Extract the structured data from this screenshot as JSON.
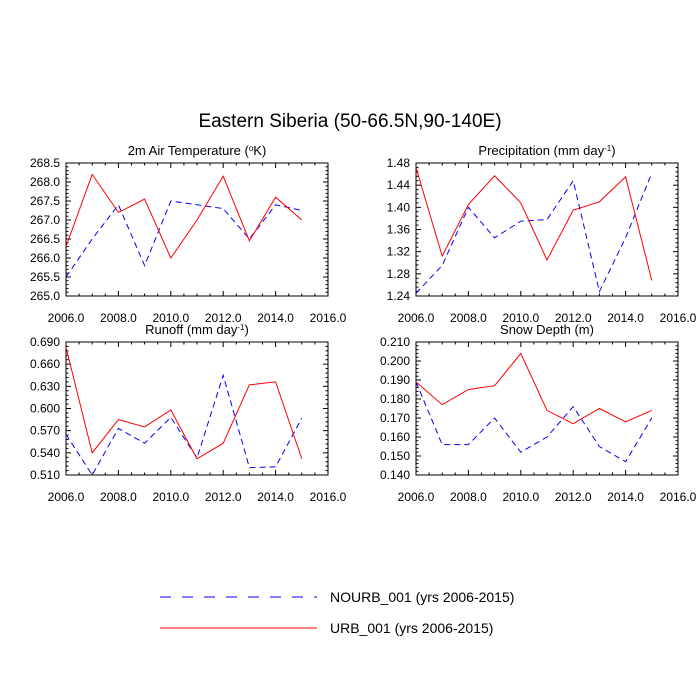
{
  "figure": {
    "title": "Eastern Siberia (50-66.5N,90-140E)"
  },
  "legend": [
    {
      "name": "NOURB_001 (yrs 2006-2015)",
      "color": "#0000ff",
      "dash": "dashed"
    },
    {
      "name": "URB_001 (yrs 2006-2015)",
      "color": "#ff0000",
      "dash": "solid"
    }
  ],
  "chart_data": [
    {
      "type": "line",
      "title": "2m Air Temperature",
      "title_unit": "K",
      "title_sup": "o",
      "title_style": "temp",
      "x": [
        2006,
        2007,
        2008,
        2009,
        2010,
        2011,
        2012,
        2013,
        2014,
        2015
      ],
      "xlim": [
        2006,
        2016
      ],
      "xticks": [
        "2006.0",
        "2008.0",
        "2010.0",
        "2012.0",
        "2014.0",
        "2016.0"
      ],
      "ylim": [
        265.0,
        268.5
      ],
      "yticks": [
        "265.0",
        "265.5",
        "266.0",
        "266.5",
        "267.0",
        "267.5",
        "268.0",
        "268.5"
      ],
      "series": [
        {
          "name": "NOURB_001",
          "color": "#0000ff",
          "dash": "dashed",
          "values": [
            265.5,
            266.5,
            267.4,
            265.8,
            267.5,
            267.4,
            267.3,
            266.5,
            267.4,
            267.25
          ]
        },
        {
          "name": "URB_001",
          "color": "#ff0000",
          "dash": "solid",
          "values": [
            266.3,
            268.2,
            267.2,
            267.55,
            266.0,
            267.0,
            268.15,
            266.45,
            267.6,
            267.0
          ]
        }
      ]
    },
    {
      "type": "line",
      "title": "Precipitation (mm day",
      "title_sup": "-1",
      "title_end": ")",
      "title_style": "sup",
      "x": [
        2006,
        2007,
        2008,
        2009,
        2010,
        2011,
        2012,
        2013,
        2014,
        2015
      ],
      "xlim": [
        2006,
        2016
      ],
      "xticks": [
        "2006.0",
        "2008.0",
        "2010.0",
        "2012.0",
        "2014.0",
        "2016.0"
      ],
      "ylim": [
        1.24,
        1.48
      ],
      "yticks": [
        "1.24",
        "1.28",
        "1.32",
        "1.36",
        "1.40",
        "1.44",
        "1.48"
      ],
      "series": [
        {
          "name": "NOURB_001",
          "color": "#0000ff",
          "dash": "dashed",
          "values": [
            1.245,
            1.295,
            1.4,
            1.345,
            1.375,
            1.378,
            1.448,
            1.248,
            1.345,
            1.462
          ]
        },
        {
          "name": "URB_001",
          "color": "#ff0000",
          "dash": "solid",
          "values": [
            1.472,
            1.312,
            1.405,
            1.457,
            1.408,
            1.305,
            1.395,
            1.41,
            1.455,
            1.268
          ]
        }
      ]
    },
    {
      "type": "line",
      "title": "Runoff (mm day",
      "title_sup": "-1",
      "title_end": ")",
      "title_style": "sup",
      "x": [
        2006,
        2007,
        2008,
        2009,
        2010,
        2011,
        2012,
        2013,
        2014,
        2015
      ],
      "xlim": [
        2006,
        2016
      ],
      "xticks": [
        "2006.0",
        "2008.0",
        "2010.0",
        "2012.0",
        "2014.0",
        "2016.0"
      ],
      "ylim": [
        0.51,
        0.69
      ],
      "yticks": [
        "0.510",
        "0.540",
        "0.570",
        "0.600",
        "0.630",
        "0.660",
        "0.690"
      ],
      "series": [
        {
          "name": "NOURB_001",
          "color": "#0000ff",
          "dash": "dashed",
          "values": [
            0.565,
            0.51,
            0.573,
            0.553,
            0.588,
            0.533,
            0.645,
            0.52,
            0.521,
            0.587
          ]
        },
        {
          "name": "URB_001",
          "color": "#ff0000",
          "dash": "solid",
          "values": [
            0.683,
            0.54,
            0.585,
            0.575,
            0.598,
            0.532,
            0.553,
            0.632,
            0.636,
            0.532
          ]
        }
      ]
    },
    {
      "type": "line",
      "title": "Snow Depth (m)",
      "title_style": "plain",
      "x": [
        2006,
        2007,
        2008,
        2009,
        2010,
        2011,
        2012,
        2013,
        2014,
        2015
      ],
      "xlim": [
        2006,
        2016
      ],
      "xticks": [
        "2006.0",
        "2008.0",
        "2010.0",
        "2012.0",
        "2014.0",
        "2016.0"
      ],
      "ylim": [
        0.14,
        0.21
      ],
      "yticks": [
        "0.140",
        "0.150",
        "0.160",
        "0.170",
        "0.180",
        "0.190",
        "0.200",
        "0.210"
      ],
      "series": [
        {
          "name": "NOURB_001",
          "color": "#0000ff",
          "dash": "dashed",
          "values": [
            0.189,
            0.156,
            0.156,
            0.17,
            0.152,
            0.16,
            0.176,
            0.155,
            0.147,
            0.17
          ]
        },
        {
          "name": "URB_001",
          "color": "#ff0000",
          "dash": "solid",
          "values": [
            0.189,
            0.177,
            0.185,
            0.187,
            0.204,
            0.174,
            0.167,
            0.175,
            0.168,
            0.174
          ]
        }
      ]
    }
  ]
}
